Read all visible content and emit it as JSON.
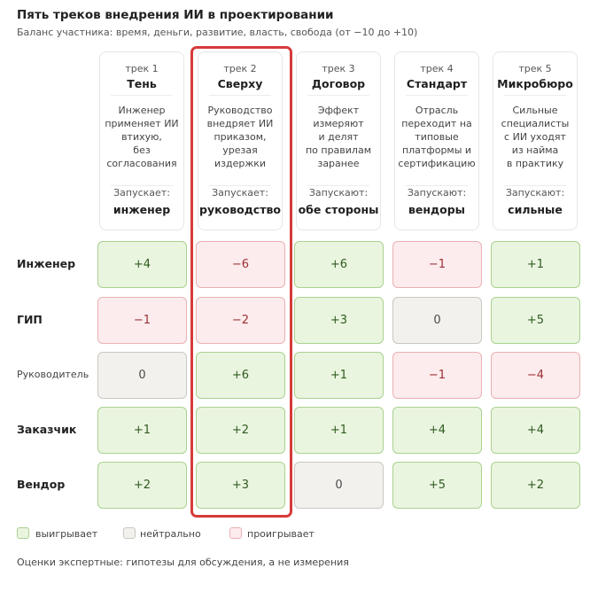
{
  "title": "Пять треков внедрения ИИ в проектировании",
  "subtitle": "Баланс участника: время, деньги, развитие, власть, свобода (от −10 до +10)",
  "tracks": [
    {
      "num": "трек 1",
      "name": "Тень",
      "desc": "Инженер\nприменяет ИИ\nвтихую,\nбез\nсогласования",
      "launch_label": "Запускает:",
      "launch_who": "инженер"
    },
    {
      "num": "трек 2",
      "name": "Сверху",
      "desc": "Руководство\nвнедряет ИИ\nприказом,\nурезая\nиздержки",
      "launch_label": "Запускает:",
      "launch_who": "руководство"
    },
    {
      "num": "трек 3",
      "name": "Договор",
      "desc": "Эффект\nизмеряют\nи делят\nпо правилам\nзаранее",
      "launch_label": "Запускают:",
      "launch_who": "обе стороны"
    },
    {
      "num": "трек 4",
      "name": "Стандарт",
      "desc": "Отрасль\nпереходит на\nтиповые\nплатформы и\nсертификацию",
      "launch_label": "Запускают:",
      "launch_who": "вендоры"
    },
    {
      "num": "трек 5",
      "name": "Микробюро",
      "desc": "Сильные\nспециалисты\nс ИИ уходят\nиз найма\nв практику",
      "launch_label": "Запускают:",
      "launch_who": "сильные"
    }
  ],
  "rows": [
    {
      "label": "Инженер",
      "small": false,
      "values": [
        {
          "text": "+4",
          "status": "pos"
        },
        {
          "text": "−6",
          "status": "neg"
        },
        {
          "text": "+6",
          "status": "pos"
        },
        {
          "text": "−1",
          "status": "neg"
        },
        {
          "text": "+1",
          "status": "pos"
        }
      ]
    },
    {
      "label": "ГИП",
      "small": false,
      "values": [
        {
          "text": "−1",
          "status": "neg"
        },
        {
          "text": "−2",
          "status": "neg"
        },
        {
          "text": "+3",
          "status": "pos"
        },
        {
          "text": "0",
          "status": "neu"
        },
        {
          "text": "+5",
          "status": "pos"
        }
      ]
    },
    {
      "label": "Руководитель",
      "small": true,
      "values": [
        {
          "text": "0",
          "status": "neu"
        },
        {
          "text": "+6",
          "status": "pos"
        },
        {
          "text": "+1",
          "status": "pos"
        },
        {
          "text": "−1",
          "status": "neg"
        },
        {
          "text": "−4",
          "status": "neg"
        }
      ]
    },
    {
      "label": "Заказчик",
      "small": false,
      "values": [
        {
          "text": "+1",
          "status": "pos"
        },
        {
          "text": "+2",
          "status": "pos"
        },
        {
          "text": "+1",
          "status": "pos"
        },
        {
          "text": "+4",
          "status": "pos"
        },
        {
          "text": "+4",
          "status": "pos"
        }
      ]
    },
    {
      "label": "Вендор",
      "small": false,
      "values": [
        {
          "text": "+2",
          "status": "pos"
        },
        {
          "text": "+3",
          "status": "pos"
        },
        {
          "text": "0",
          "status": "neu"
        },
        {
          "text": "+5",
          "status": "pos"
        },
        {
          "text": "+2",
          "status": "pos"
        }
      ]
    }
  ],
  "highlighted_track": 2,
  "legend": [
    {
      "label": "выигрывает",
      "status": "pos"
    },
    {
      "label": "нейтрально",
      "status": "neu"
    },
    {
      "label": "проигрывает",
      "status": "neg"
    }
  ],
  "footnote": "Оценки экспертные: гипотезы для обсуждения, а не измерения",
  "colors": {
    "win": "#eaf5e0",
    "neutral": "#f3f1ee",
    "lose": "#fdeced",
    "highlight": "#d63b3b"
  }
}
